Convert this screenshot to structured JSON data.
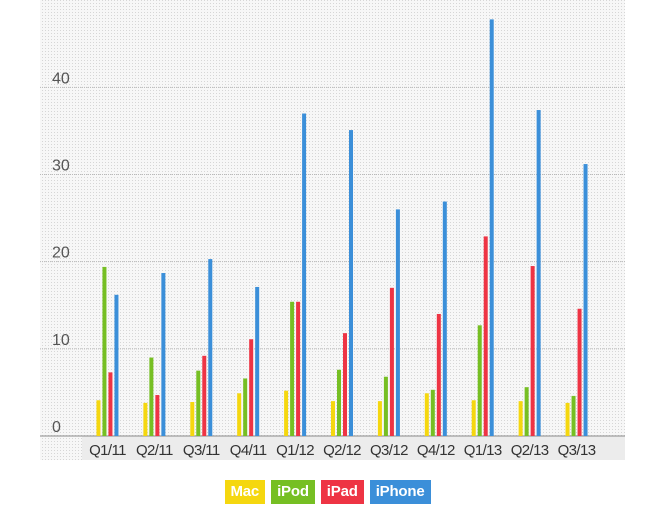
{
  "chart_data": {
    "type": "bar",
    "title": "",
    "xlabel": "",
    "ylabel": "",
    "categories": [
      "Q1/11",
      "Q2/11",
      "Q3/11",
      "Q4/11",
      "Q1/12",
      "Q2/12",
      "Q3/12",
      "Q4/12",
      "Q1/13",
      "Q2/13",
      "Q3/13"
    ],
    "yticks": [
      "0",
      "10",
      "20",
      "30",
      "40"
    ],
    "ylim": [
      0,
      47.5
    ],
    "grid": true,
    "legend_position": "bottom-center",
    "series": [
      {
        "name": "Mac",
        "color": "#f5d70f",
        "values": [
          4.1,
          3.8,
          3.9,
          4.9,
          5.2,
          4.0,
          4.0,
          4.9,
          4.1,
          4.0,
          3.8
        ]
      },
      {
        "name": "iPod",
        "color": "#76bf23",
        "values": [
          19.4,
          9.0,
          7.5,
          6.6,
          15.4,
          7.6,
          6.8,
          5.3,
          12.7,
          5.6,
          4.6
        ]
      },
      {
        "name": "iPad",
        "color": "#ee3444",
        "values": [
          7.3,
          4.7,
          9.2,
          11.1,
          15.4,
          11.8,
          17.0,
          14.0,
          22.9,
          19.5,
          14.6
        ]
      },
      {
        "name": "iPhone",
        "color": "#3b8fd9",
        "values": [
          16.2,
          18.7,
          20.3,
          17.1,
          37.0,
          35.1,
          26.0,
          26.9,
          47.8,
          37.4,
          31.2
        ]
      }
    ]
  }
}
